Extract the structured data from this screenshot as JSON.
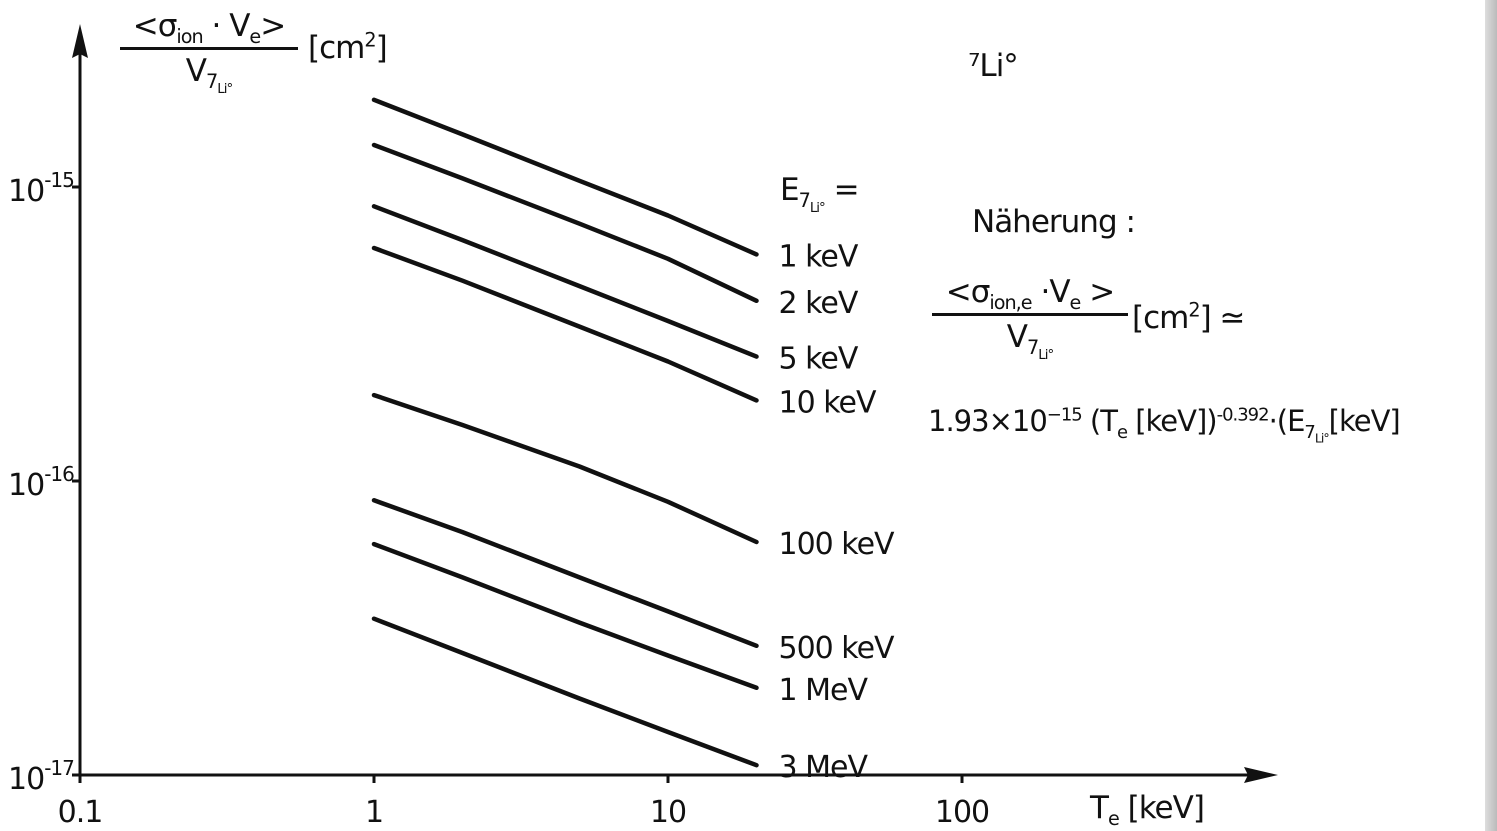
{
  "chart_data": {
    "type": "line",
    "title": "⁷Li°",
    "ylabel": {
      "numerator_lt": "<σ",
      "numerator_sub": "ion",
      "numerator_dot": " · V",
      "numerator_sub2": "e",
      "numerator_gt": ">",
      "denominator": "V",
      "denominator_sub": "7",
      "denominator_subsub": "Li°",
      "unit": "[cm",
      "unit_sup": "2",
      "unit_close": "]"
    },
    "xlabel": {
      "main": "T",
      "sub": "e",
      "unit": " [keV]"
    },
    "x_scale": "log",
    "y_scale": "log",
    "xlim": [
      0.1,
      1000
    ],
    "ylim": [
      1e-17,
      4e-15
    ],
    "x_ticks": [
      {
        "value": 0.1,
        "label": "0.1"
      },
      {
        "value": 1,
        "label": "1"
      },
      {
        "value": 10,
        "label": "10"
      },
      {
        "value": 100,
        "label": "100"
      }
    ],
    "y_ticks": [
      {
        "value": 1e-15,
        "label": "10",
        "exp": "-15"
      },
      {
        "value": 1e-16,
        "label": "10",
        "exp": "-16"
      },
      {
        "value": 1e-17,
        "label": "10",
        "exp": "-17"
      }
    ],
    "legend_title": {
      "main": "E",
      "sub": "7",
      "subsub": "Li°",
      "eq": " ="
    },
    "series": [
      {
        "name": "1 keV",
        "x": [
          1,
          2,
          5,
          10,
          20
        ],
        "y": [
          1.98e-15,
          1.51e-15,
          1.05e-15,
          8e-16,
          5.9e-16
        ]
      },
      {
        "name": "2 keV",
        "x": [
          1,
          2,
          5,
          10,
          20
        ],
        "y": [
          1.39e-15,
          1.07e-15,
          7.5e-16,
          5.7e-16,
          4.1e-16
        ]
      },
      {
        "name": "5 keV",
        "x": [
          1,
          2,
          5,
          10,
          20
        ],
        "y": [
          8.6e-16,
          6.6e-16,
          4.6e-16,
          3.5e-16,
          2.65e-16
        ]
      },
      {
        "name": "10 keV",
        "x": [
          1,
          2,
          5,
          10,
          20
        ],
        "y": [
          6.2e-16,
          4.8e-16,
          3.35e-16,
          2.55e-16,
          1.88e-16
        ]
      },
      {
        "name": "100 keV",
        "x": [
          1,
          2,
          5,
          10,
          20
        ],
        "y": [
          1.96e-16,
          1.55e-16,
          1.12e-16,
          8.5e-17,
          6.2e-17
        ]
      },
      {
        "name": "500 keV",
        "x": [
          1,
          2,
          5,
          10,
          20
        ],
        "y": [
          8.6e-17,
          6.7e-17,
          4.7e-17,
          3.6e-17,
          2.75e-17
        ]
      },
      {
        "name": "1 MeV",
        "x": [
          1,
          2,
          5,
          10,
          20
        ],
        "y": [
          6.1e-17,
          4.7e-17,
          3.3e-17,
          2.55e-17,
          1.98e-17
        ]
      },
      {
        "name": "3 MeV",
        "x": [
          1,
          2,
          5,
          10,
          20
        ],
        "y": [
          3.4e-17,
          2.6e-17,
          1.82e-17,
          1.4e-17,
          1.08e-17
        ]
      }
    ],
    "grid": false,
    "legend_placement": "right-of-curves",
    "approximation": {
      "heading": "Näherung :",
      "num_lt": "<σ",
      "num_sub": "ion,e",
      "num_dot": " ·V",
      "num_sub2": "e",
      "num_gt": " >",
      "den": "V",
      "den_sub": "7",
      "den_subsub": "Li°",
      "unit": " [cm",
      "unit_sup": "2",
      "unit_close": "] ≃",
      "coef": "1.93×10",
      "coef_exp": "−15",
      "te_open": " (T",
      "te_sub": "e",
      "te_close": " [keV])",
      "te_exp": "-0.392",
      "mid_dot": "·",
      "e_open": "(E",
      "e_sub": "7",
      "e_subsub": "Li°",
      "e_close": "[keV]"
    }
  },
  "colors": {
    "ink": "#111111",
    "background": "#ffffff"
  }
}
